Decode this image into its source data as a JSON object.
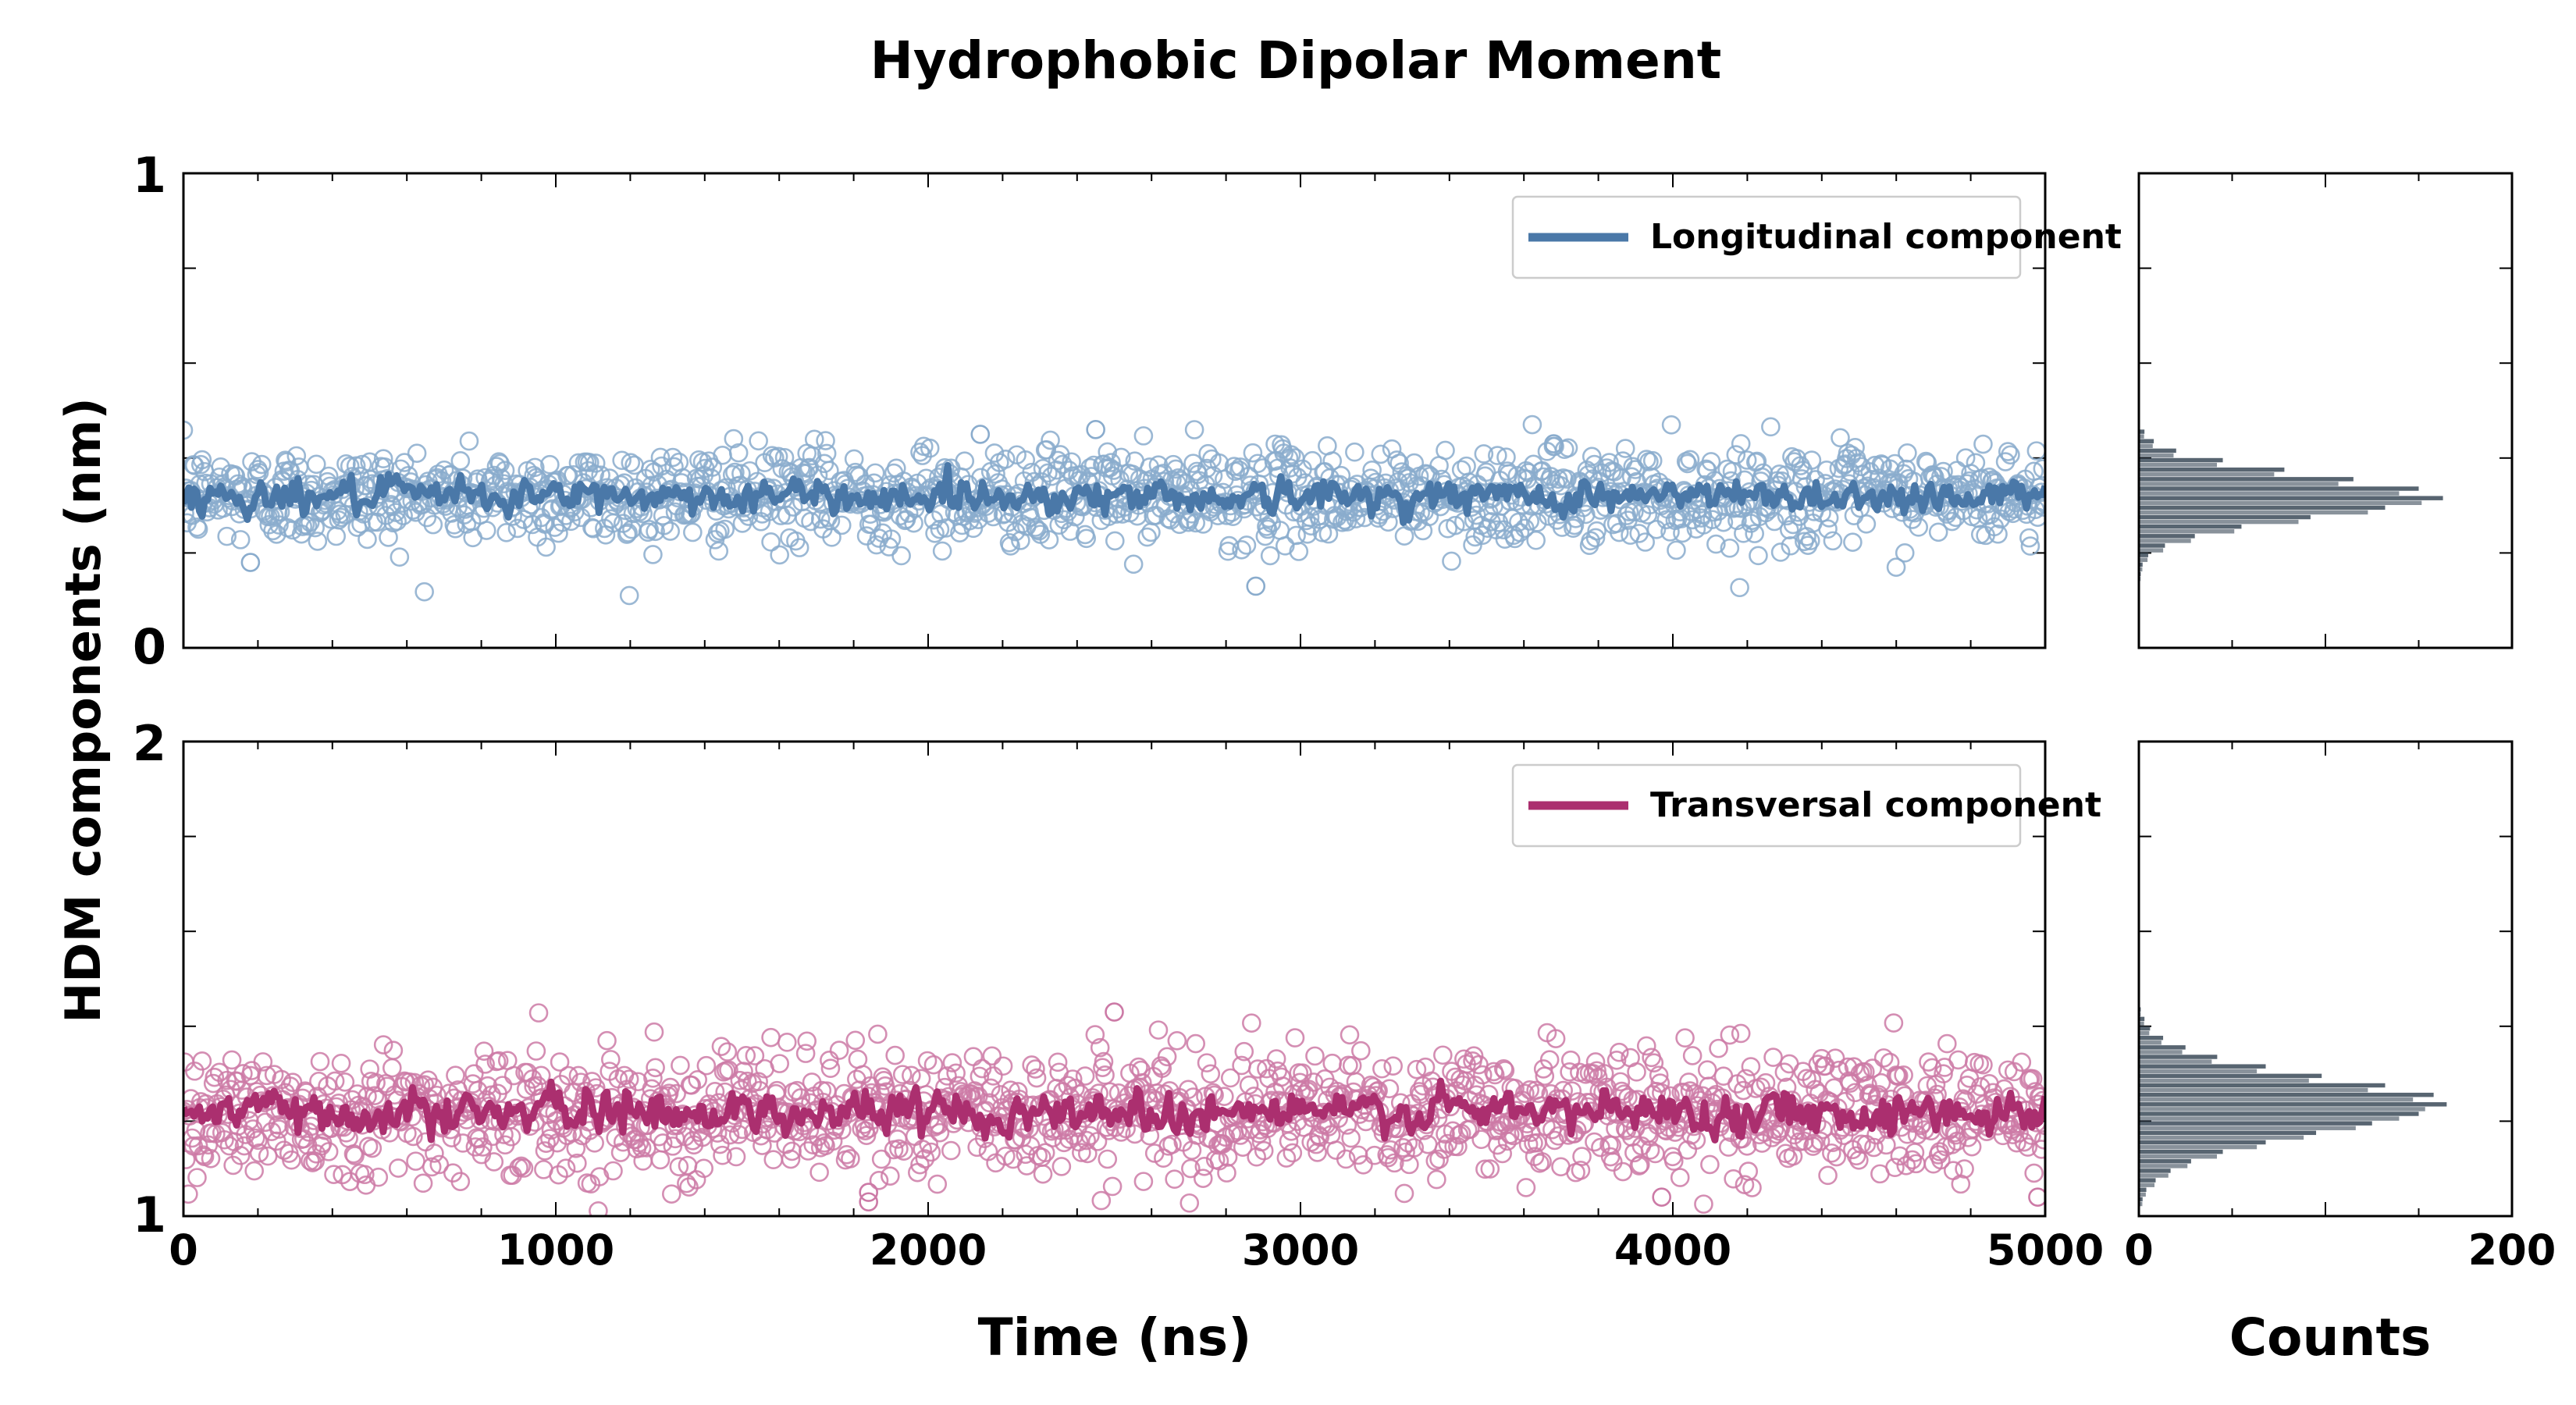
{
  "figure": {
    "title": "Hydrophobic Dipolar Moment",
    "ylabel": "HDM components (nm)",
    "xlabel": "Time (ns)",
    "hist_xlabel": "Counts"
  },
  "colors": {
    "longitudinal": "#4a78a8",
    "longitudinal_scatter": "#8aaccd",
    "transversal": "#ab2f6f",
    "transversal_scatter": "#cc7aa6",
    "hist_bar": "#3b4a58",
    "axis": "#000000"
  },
  "chart_data": [
    {
      "type": "scatter+line",
      "panel": "top",
      "legend": "Longitudinal component",
      "legend_position": "top-right",
      "xlim": [
        0,
        5000
      ],
      "ylim": [
        0,
        1
      ],
      "yticklabels": [
        "0",
        "1"
      ],
      "xtick_major": [
        0,
        1000,
        2000,
        3000,
        4000,
        5000
      ],
      "n_points": 1500,
      "mean": 0.32,
      "point_spread_sd": 0.05,
      "line_sd": 0.018,
      "outliers": [
        {
          "x": 2450,
          "y": 0.46
        },
        {
          "x": 2140,
          "y": 0.45
        },
        {
          "x": 3680,
          "y": 0.43
        },
        {
          "x": 2880,
          "y": 0.13
        },
        {
          "x": 180,
          "y": 0.18
        }
      ]
    },
    {
      "type": "scatter+line",
      "panel": "bottom",
      "legend": "Transversal component",
      "legend_position": "top-right",
      "xlim": [
        0,
        5000
      ],
      "ylim": [
        1,
        2
      ],
      "yticklabels": [
        "1",
        "2"
      ],
      "xtick_major": [
        0,
        1000,
        2000,
        3000,
        4000,
        5000
      ],
      "xticklabels": [
        "0",
        "1000",
        "2000",
        "3000",
        "4000",
        "5000"
      ],
      "n_points": 1500,
      "mean": 1.22,
      "point_spread_sd": 0.065,
      "line_sd": 0.022,
      "outliers": [
        {
          "x": 2500,
          "y": 1.43
        },
        {
          "x": 1840,
          "y": 1.03
        },
        {
          "x": 1840,
          "y": 1.05
        },
        {
          "x": 3970,
          "y": 1.04
        },
        {
          "x": 4980,
          "y": 1.04
        }
      ]
    },
    {
      "type": "histogram",
      "panel": "top-right",
      "orientation": "horizontal",
      "xlim": [
        0,
        200
      ],
      "ylim": [
        0,
        1
      ],
      "bin_centers": [
        0.15,
        0.17,
        0.19,
        0.21,
        0.23,
        0.25,
        0.27,
        0.29,
        0.31,
        0.33,
        0.35,
        0.37,
        0.39,
        0.41,
        0.43,
        0.45
      ],
      "counts": [
        1,
        2,
        5,
        14,
        30,
        55,
        92,
        132,
        163,
        150,
        115,
        78,
        45,
        20,
        8,
        3
      ]
    },
    {
      "type": "histogram",
      "panel": "bottom-right",
      "orientation": "horizontal",
      "xlim": [
        0,
        200
      ],
      "ylim": [
        1,
        2
      ],
      "xticklabels": [
        "0",
        "200"
      ],
      "bin_centers": [
        1.03,
        1.05,
        1.07,
        1.09,
        1.11,
        1.13,
        1.15,
        1.17,
        1.19,
        1.21,
        1.23,
        1.25,
        1.27,
        1.29,
        1.31,
        1.33,
        1.35,
        1.37,
        1.39,
        1.41,
        1.43
      ],
      "counts": [
        2,
        4,
        9,
        17,
        28,
        45,
        68,
        95,
        125,
        150,
        165,
        158,
        132,
        98,
        68,
        42,
        25,
        13,
        6,
        3,
        1
      ]
    }
  ]
}
